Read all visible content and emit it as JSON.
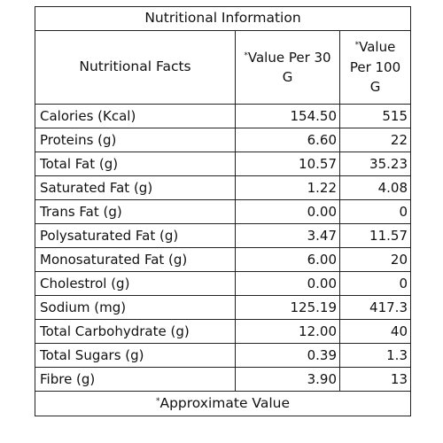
{
  "title": "Nutritional Information",
  "header": {
    "facts": "Nutritional Facts",
    "marker": "*",
    "per_30g": "Value Per 30 G",
    "per_100g": "Value Per 100 G"
  },
  "rows": [
    {
      "label": "Calories (Kcal)",
      "per_30g": "154.50",
      "per_100g": "515"
    },
    {
      "label": "Proteins (g)",
      "per_30g": "6.60",
      "per_100g": "22"
    },
    {
      "label": "Total Fat (g)",
      "per_30g": "10.57",
      "per_100g": "35.23"
    },
    {
      "label": "Saturated Fat (g)",
      "per_30g": "1.22",
      "per_100g": "4.08"
    },
    {
      "label": "Trans Fat (g)",
      "per_30g": "0.00",
      "per_100g": "0"
    },
    {
      "label": "Polysaturated Fat (g)",
      "per_30g": "3.47",
      "per_100g": "11.57"
    },
    {
      "label": "Monosaturated Fat (g)",
      "per_30g": "6.00",
      "per_100g": "20"
    },
    {
      "label": "Cholestrol (g)",
      "per_30g": "0.00",
      "per_100g": "0"
    },
    {
      "label": "Sodium  (mg)",
      "per_30g": "125.19",
      "per_100g": "417.3"
    },
    {
      "label": "Total Carbohydrate (g)",
      "per_30g": "12.00",
      "per_100g": "40"
    },
    {
      "label": "Total Sugars (g)",
      "per_30g": "0.39",
      "per_100g": "1.3"
    },
    {
      "label": "Fibre (g)",
      "per_30g": "3.90",
      "per_100g": "13"
    }
  ],
  "footnote": {
    "marker": "*",
    "text": "Approximate Value"
  }
}
